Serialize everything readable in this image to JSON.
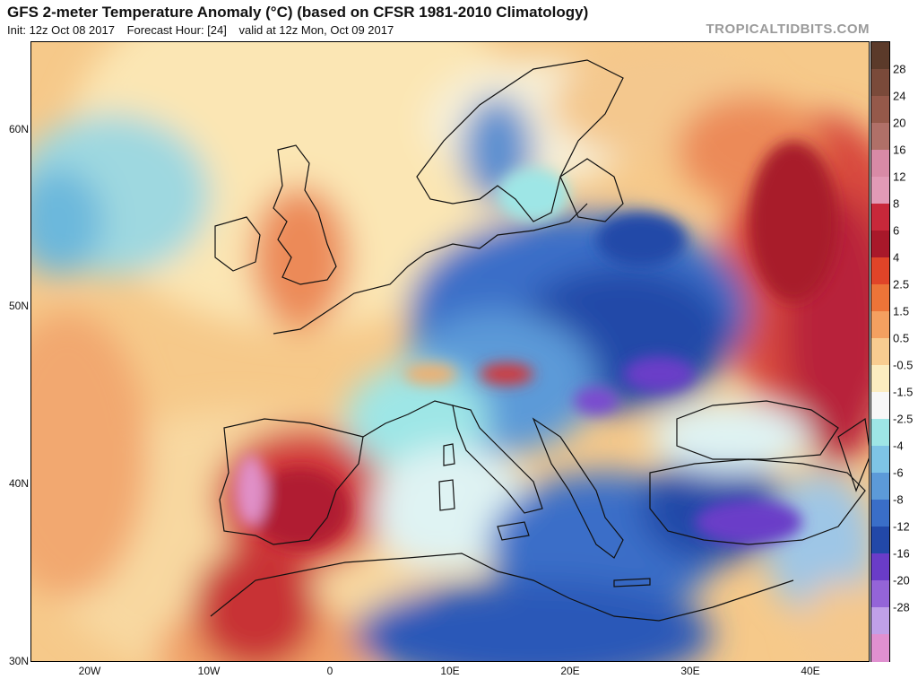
{
  "title": "GFS 2-meter Temperature Anomaly (°C) (based on CFSR 1981-2010 Climatology)",
  "init": "Init: 12z Oct 08 2017",
  "forecast_hour": "Forecast Hour: [24]",
  "valid": "valid at 12z Mon, Oct 09 2017",
  "brand": "TROPICALTIDBITS.COM",
  "lat_labels": [
    "60N",
    "50N",
    "40N",
    "30N"
  ],
  "lon_labels": [
    "20W",
    "10W",
    "0",
    "10E",
    "20E",
    "30E",
    "40E"
  ],
  "colorbar": {
    "labels": [
      "28",
      "24",
      "20",
      "16",
      "12",
      "8",
      "6",
      "4",
      "2.5",
      "1.5",
      "0.5",
      "-0.5",
      "-1.5",
      "-2.5",
      "-4",
      "-6",
      "-8",
      "-12",
      "-16",
      "-20",
      "-28"
    ],
    "colors": [
      "#5b3a2a",
      "#7a4a3a",
      "#95594a",
      "#b07068",
      "#d88aa6",
      "#e29ab6",
      "#c8283a",
      "#a8182a",
      "#e04428",
      "#ec7438",
      "#f4a060",
      "#f8cc90",
      "#fbecc0",
      "#f7f7f7",
      "#9ee6e6",
      "#7ec4e6",
      "#5c9ad8",
      "#3a6ec8",
      "#2248a8",
      "#6a3cc8",
      "#9464d8",
      "#c0a0e8",
      "#e090d0"
    ]
  }
}
